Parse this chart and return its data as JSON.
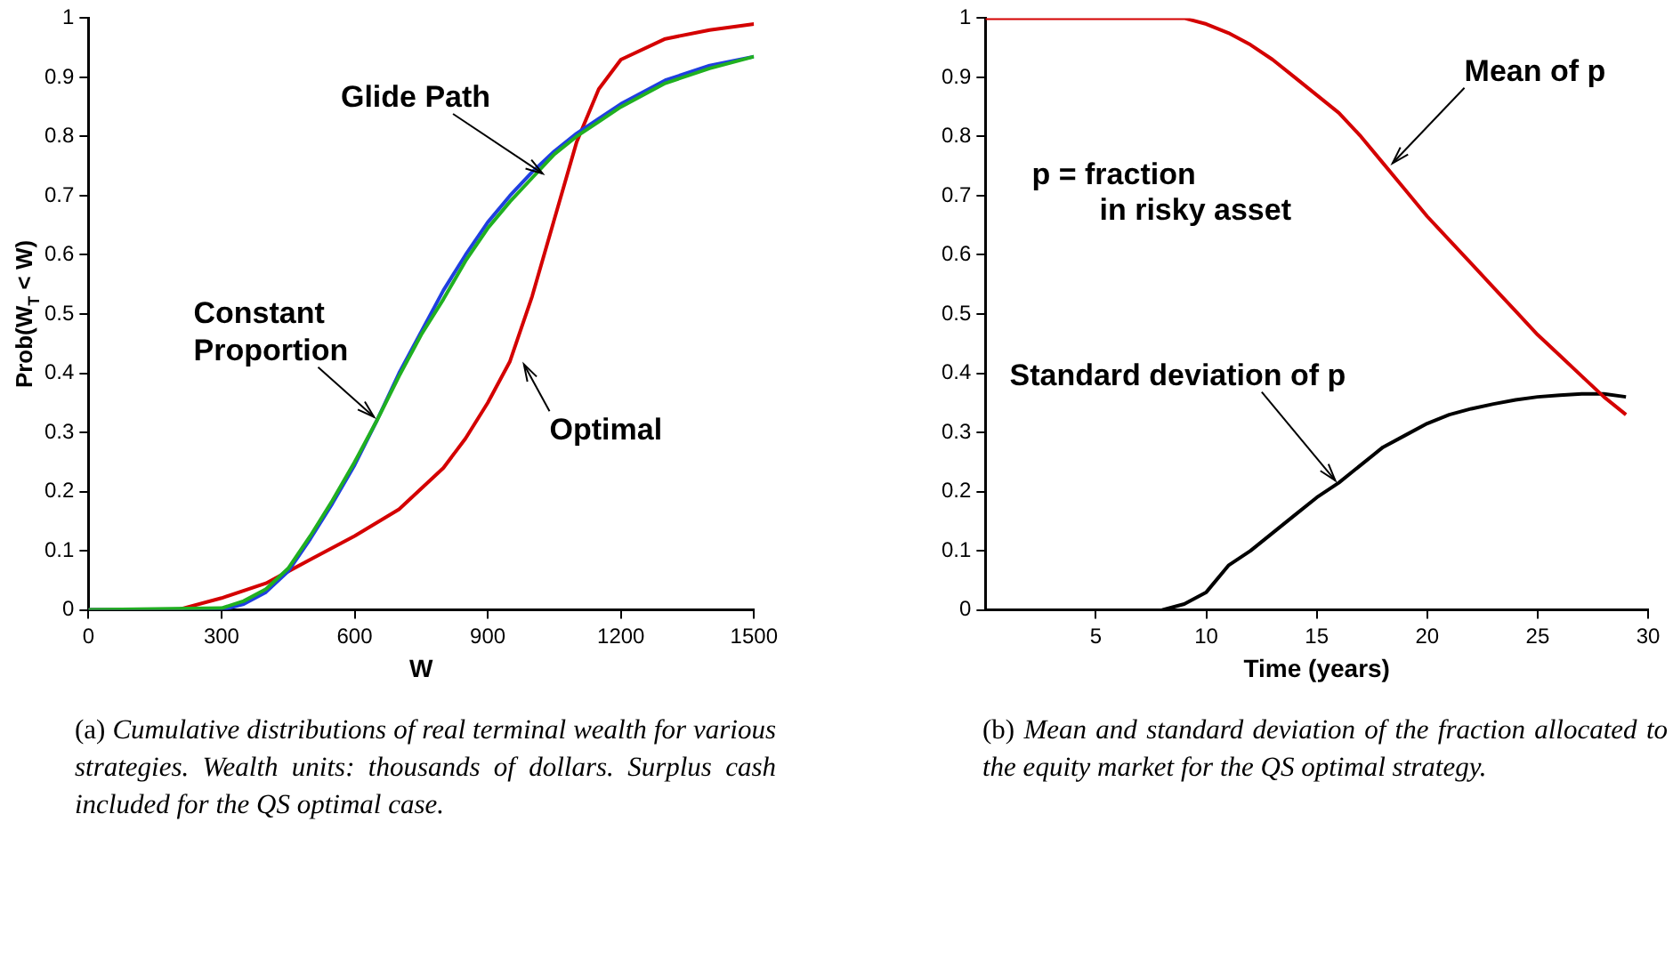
{
  "chart_data": [
    {
      "type": "line",
      "xlabel": "W",
      "ylabel": "Prob(W$_{T}$ < W)",
      "xlim": [
        0,
        1500
      ],
      "xticks": [
        0,
        300,
        600,
        900,
        1200,
        1500
      ],
      "ylim": [
        0,
        1
      ],
      "yticks": [
        0,
        0.1,
        0.2,
        0.3,
        0.4,
        0.5,
        0.6,
        0.7,
        0.8,
        0.9,
        1
      ],
      "grid": false,
      "legend": false,
      "marker": "none",
      "line_style": "solid",
      "series": [
        {
          "color": "#20b020",
          "x": [
            0,
            300,
            350,
            400,
            450,
            500,
            550,
            600,
            650,
            700,
            750,
            800,
            850,
            900,
            950,
            1000,
            1050,
            1100,
            1150,
            1200,
            1300,
            1400,
            1500
          ],
          "values": [
            0,
            0.003,
            0.015,
            0.035,
            0.07,
            0.125,
            0.185,
            0.25,
            0.32,
            0.395,
            0.465,
            0.525,
            0.59,
            0.645,
            0.69,
            0.73,
            0.77,
            0.8,
            0.825,
            0.85,
            0.89,
            0.915,
            0.935
          ]
        },
        {
          "color": "#1f3fe0",
          "x": [
            0,
            300,
            350,
            400,
            450,
            500,
            550,
            600,
            650,
            700,
            750,
            800,
            850,
            900,
            950,
            1000,
            1050,
            1100,
            1150,
            1200,
            1300,
            1400,
            1500
          ],
          "values": [
            0,
            0,
            0.01,
            0.03,
            0.065,
            0.12,
            0.18,
            0.245,
            0.32,
            0.4,
            0.47,
            0.54,
            0.6,
            0.655,
            0.7,
            0.74,
            0.775,
            0.805,
            0.83,
            0.855,
            0.895,
            0.92,
            0.935
          ]
        },
        {
          "color": "#d40000",
          "x": [
            0,
            200,
            300,
            400,
            450,
            500,
            600,
            700,
            800,
            850,
            900,
            950,
            1000,
            1050,
            1100,
            1150,
            1200,
            1300,
            1400,
            1500
          ],
          "values": [
            0,
            0,
            0.02,
            0.045,
            0.065,
            0.085,
            0.125,
            0.17,
            0.24,
            0.29,
            0.35,
            0.42,
            0.53,
            0.66,
            0.79,
            0.88,
            0.93,
            0.965,
            0.98,
            0.99
          ]
        }
      ],
      "annotations": [
        {
          "text": "Glide Path",
          "x": 1030,
          "y": 0.73
        },
        {
          "text": "Constant Proportion",
          "x": 650,
          "y": 0.32
        },
        {
          "text": "Optimal",
          "x": 975,
          "y": 0.42
        },
        "(a) Cumulative distributions of real terminal wealth for various strategies. Wealth units: thousands of dollars. Surplus cash included for the QS optimal case."
      ]
    },
    {
      "type": "line",
      "xlabel": "Time (years)",
      "xlim": [
        0,
        30
      ],
      "xticks": [
        5,
        10,
        15,
        20,
        25,
        30
      ],
      "ylim": [
        0,
        1
      ],
      "yticks": [
        0,
        0.1,
        0.2,
        0.3,
        0.4,
        0.5,
        0.6,
        0.7,
        0.8,
        0.9,
        1
      ],
      "grid": false,
      "legend": false,
      "marker": "none",
      "line_style": "solid",
      "series": [
        {
          "color": "#d40000",
          "x": [
            0,
            9,
            10,
            11,
            12,
            13,
            14,
            15,
            16,
            17,
            18,
            19,
            20,
            21,
            22,
            23,
            24,
            25,
            26,
            27,
            28,
            29
          ],
          "values": [
            1,
            1,
            0.99,
            0.975,
            0.955,
            0.93,
            0.9,
            0.87,
            0.84,
            0.8,
            0.755,
            0.71,
            0.665,
            0.625,
            0.585,
            0.545,
            0.505,
            0.465,
            0.43,
            0.395,
            0.36,
            0.33
          ]
        },
        {
          "color": "#000000",
          "x": [
            8,
            9,
            10,
            11,
            12,
            13,
            14,
            15,
            16,
            17,
            18,
            19,
            20,
            21,
            22,
            23,
            24,
            25,
            26,
            27,
            28,
            29
          ],
          "values": [
            0,
            0.01,
            0.03,
            0.075,
            0.1,
            0.13,
            0.16,
            0.19,
            0.215,
            0.245,
            0.275,
            0.295,
            0.315,
            0.33,
            0.34,
            0.348,
            0.355,
            0.36,
            0.363,
            0.365,
            0.365,
            0.36
          ]
        }
      ],
      "annotations": [
        {
          "text": "Mean of p",
          "x": 18.3,
          "y": 0.75
        },
        "p = fraction\nin risky asset",
        {
          "text": "Standard deviation of p",
          "x": 16,
          "y": 0.215
        },
        "(b) Mean and standard deviation of the fraction allocated to the equity market for the QS optimal strategy."
      ]
    }
  ]
}
